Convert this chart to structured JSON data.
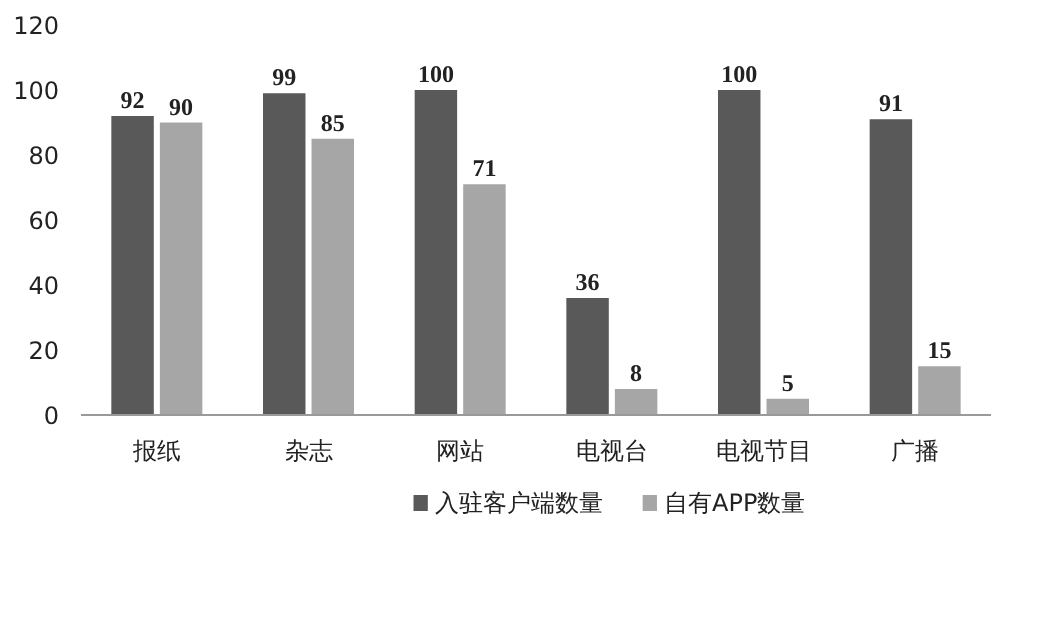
{
  "chart_data": {
    "type": "bar",
    "categories": [
      "报纸",
      "杂志",
      "网站",
      "电视台",
      "电视节目",
      "广播"
    ],
    "series": [
      {
        "name": "入驻客户端数量",
        "color": "#595959",
        "values": [
          92,
          99,
          100,
          36,
          100,
          91
        ]
      },
      {
        "name": "自有APP数量",
        "color": "#a6a6a6",
        "values": [
          90,
          85,
          71,
          8,
          5,
          15
        ]
      }
    ],
    "ylim": [
      0,
      120
    ],
    "yticks": [
      0,
      20,
      40,
      60,
      80,
      100,
      120
    ],
    "data_labels": true,
    "legend": "bottom",
    "grid": false
  }
}
